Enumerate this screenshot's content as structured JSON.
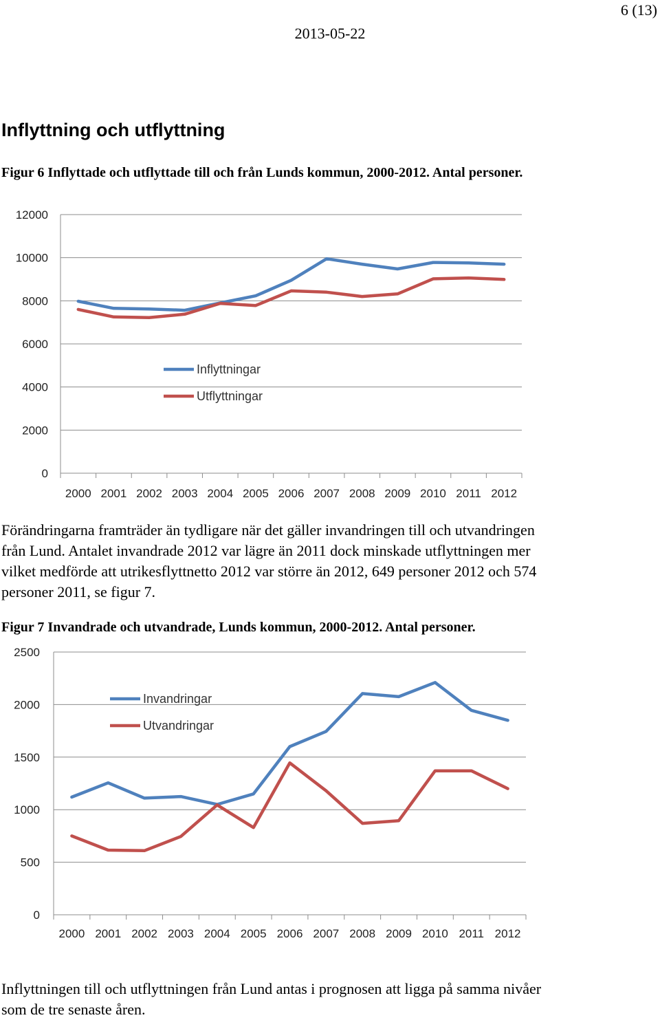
{
  "header": {
    "page_number": "6 (13)",
    "date": "2013-05-22"
  },
  "section_heading": "Inflyttning och utflyttning",
  "fig6_caption": "Figur 6 Inflyttade och utflyttade till och från Lunds kommun, 2000-2012. Antal personer.",
  "paragraph1": "Förändringarna framträder än tydligare när det gäller invandringen till och utvandringen från Lund. Antalet invandrade 2012 var lägre än 2011 dock minskade utflyttningen mer vilket medförde att utrikesflyttnetto 2012 var större än 2012, 649 personer 2012 och 574 personer 2011, se figur 7.",
  "fig7_caption": "Figur 7 Invandrade och utvandrade, Lunds kommun, 2000-2012. Antal personer.",
  "paragraph2": "Inflyttningen till och utflyttningen från Lund antas i prognosen att ligga på samma nivåer som de tre senaste åren.",
  "chart_data": [
    {
      "type": "line",
      "title": "",
      "xlabel": "",
      "ylabel": "",
      "categories": [
        "2000",
        "2001",
        "2002",
        "2003",
        "2004",
        "2005",
        "2006",
        "2007",
        "2008",
        "2009",
        "2010",
        "2011",
        "2012"
      ],
      "ylim": [
        0,
        12000
      ],
      "yticks": [
        "0",
        "2000",
        "4000",
        "6000",
        "8000",
        "10000",
        "12000"
      ],
      "grid": true,
      "legend_position": "center-left",
      "series": [
        {
          "name": "Inflyttningar",
          "color": "#4f81bd",
          "values": [
            7980,
            7650,
            7620,
            7560,
            7900,
            8230,
            8950,
            9950,
            9700,
            9480,
            9780,
            9760,
            9700
          ]
        },
        {
          "name": "Utflyttningar",
          "color": "#c0504d",
          "values": [
            7600,
            7250,
            7220,
            7380,
            7880,
            7780,
            8460,
            8400,
            8200,
            8320,
            9020,
            9060,
            8990
          ]
        }
      ]
    },
    {
      "type": "line",
      "title": "",
      "xlabel": "",
      "ylabel": "",
      "categories": [
        "2000",
        "2001",
        "2002",
        "2003",
        "2004",
        "2005",
        "2006",
        "2007",
        "2008",
        "2009",
        "2010",
        "2011",
        "2012"
      ],
      "ylim": [
        0,
        2500
      ],
      "yticks": [
        "0",
        "500",
        "1000",
        "1500",
        "2000",
        "2500"
      ],
      "grid": true,
      "legend_position": "top-left",
      "series": [
        {
          "name": "Invandringar",
          "color": "#4f81bd",
          "values": [
            1120,
            1255,
            1110,
            1125,
            1050,
            1150,
            1600,
            1745,
            2105,
            2075,
            2210,
            1945,
            1850
          ]
        },
        {
          "name": "Utvandringar",
          "color": "#c0504d",
          "values": [
            750,
            615,
            610,
            745,
            1045,
            830,
            1445,
            1180,
            870,
            895,
            1370,
            1370,
            1200
          ]
        }
      ]
    }
  ]
}
